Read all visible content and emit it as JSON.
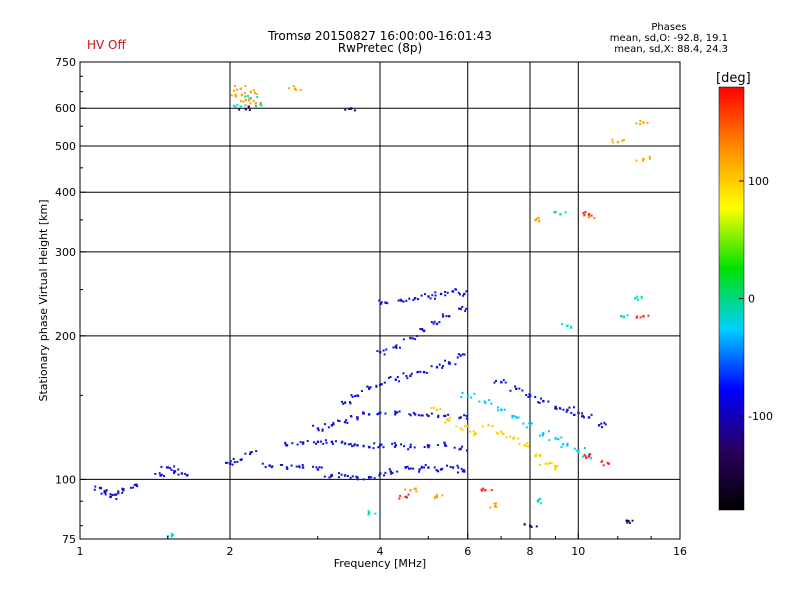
{
  "header": {
    "hv_status": "HV Off",
    "title_line1": "Tromsø 20150827 16:00:00-16:01:43",
    "title_line2": "RwPretec (8p)",
    "phases_title": "Phases",
    "phases_o": "mean, sd,O: -92.8, 19.1",
    "phases_x": "mean, sd,X: 88.4, 24.3"
  },
  "chart_data": {
    "type": "scatter",
    "title": "Tromsø 20150827 16:00:00-16:01:43",
    "subtitle": "RwPretec (8p)",
    "xlabel": "Frequency [MHz]",
    "ylabel": "Stationary phase Virtual Height [km]",
    "x_scale": "log",
    "y_scale": "log",
    "xlim": [
      1,
      16
    ],
    "ylim": [
      75,
      750
    ],
    "x_ticks": [
      1,
      2,
      4,
      6,
      8,
      10,
      16
    ],
    "x_tick_labels": [
      "1",
      "2",
      "4",
      "6",
      "8",
      "10",
      "16"
    ],
    "y_ticks": [
      75,
      100,
      200,
      300,
      400,
      500,
      600,
      750
    ],
    "y_tick_labels": [
      "75",
      "100",
      "200",
      "300",
      "400",
      "500",
      "600",
      "750"
    ],
    "x_gridlines": [
      2,
      4,
      6,
      8,
      10
    ],
    "y_gridlines": [
      100,
      200,
      300,
      400,
      500,
      600
    ],
    "grid": true,
    "colorbar": {
      "label": "[deg]",
      "range": [
        -180,
        180
      ],
      "ticks": [
        100,
        0,
        -100
      ],
      "tick_labels": [
        "100",
        "0",
        "-100"
      ],
      "colors": [
        "#000000",
        "#2a0060",
        "#0000ff",
        "#00d0ff",
        "#00e000",
        "#ffff00",
        "#ff8c00",
        "#ff0000"
      ]
    },
    "series": [
      {
        "color": "#1010d8",
        "points": [
          [
            1.1,
            96
          ],
          [
            1.12,
            94
          ],
          [
            1.15,
            92
          ],
          [
            1.18,
            93
          ],
          [
            1.22,
            95
          ],
          [
            1.3,
            97
          ],
          [
            1.45,
            102
          ],
          [
            1.5,
            106
          ],
          [
            1.55,
            104
          ],
          [
            1.6,
            103
          ],
          [
            2.0,
            108
          ],
          [
            2.1,
            110
          ],
          [
            2.2,
            114
          ],
          [
            2.4,
            107
          ],
          [
            2.6,
            106
          ],
          [
            2.8,
            106
          ],
          [
            3.0,
            105
          ],
          [
            3.2,
            102
          ],
          [
            3.4,
            102
          ],
          [
            3.6,
            101
          ],
          [
            3.8,
            101
          ],
          [
            4.0,
            103
          ],
          [
            4.2,
            104
          ],
          [
            4.5,
            106
          ],
          [
            4.8,
            105
          ],
          [
            5.0,
            106
          ],
          [
            5.3,
            105
          ],
          [
            5.6,
            106
          ],
          [
            5.9,
            104
          ]
        ]
      },
      {
        "color": "#1010d8",
        "points": [
          [
            2.6,
            118
          ],
          [
            2.8,
            119
          ],
          [
            3.0,
            120
          ],
          [
            3.2,
            120
          ],
          [
            3.4,
            119
          ],
          [
            3.6,
            118
          ],
          [
            3.8,
            117
          ],
          [
            4.0,
            118
          ],
          [
            4.3,
            118
          ],
          [
            4.6,
            117
          ],
          [
            5.0,
            117
          ],
          [
            5.4,
            118
          ],
          [
            5.8,
            116
          ]
        ]
      },
      {
        "color": "#1010d8",
        "points": [
          [
            3.0,
            128
          ],
          [
            3.2,
            130
          ],
          [
            3.4,
            132
          ],
          [
            3.6,
            135
          ],
          [
            3.8,
            137
          ],
          [
            4.0,
            138
          ],
          [
            4.3,
            138
          ],
          [
            4.7,
            137
          ],
          [
            5.0,
            136
          ],
          [
            5.4,
            136
          ],
          [
            5.8,
            135
          ]
        ]
      },
      {
        "color": "#1010d8",
        "points": [
          [
            3.4,
            145
          ],
          [
            3.6,
            150
          ],
          [
            3.8,
            155
          ],
          [
            4.0,
            158
          ],
          [
            4.3,
            162
          ],
          [
            4.6,
            165
          ],
          [
            4.9,
            168
          ],
          [
            5.2,
            172
          ],
          [
            5.5,
            176
          ],
          [
            5.8,
            182
          ]
        ]
      },
      {
        "color": "#1010d8",
        "points": [
          [
            4.0,
            185
          ],
          [
            4.3,
            190
          ],
          [
            4.6,
            198
          ],
          [
            4.9,
            205
          ],
          [
            5.2,
            212
          ],
          [
            5.5,
            220
          ],
          [
            5.8,
            228
          ]
        ]
      },
      {
        "color": "#1010d8",
        "points": [
          [
            4.1,
            235
          ],
          [
            4.4,
            238
          ],
          [
            4.7,
            240
          ],
          [
            5.0,
            242
          ],
          [
            5.3,
            245
          ],
          [
            5.6,
            248
          ],
          [
            5.9,
            245
          ]
        ]
      },
      {
        "color": "#ffd000",
        "points": [
          [
            5.2,
            140
          ],
          [
            5.5,
            133
          ],
          [
            5.8,
            128
          ],
          [
            6.2,
            125
          ],
          [
            6.6,
            130
          ],
          [
            7.0,
            126
          ],
          [
            7.4,
            122
          ],
          [
            7.8,
            118
          ],
          [
            8.2,
            112
          ],
          [
            8.6,
            108
          ],
          [
            9.0,
            106
          ]
        ]
      },
      {
        "color": "#00c8ff",
        "points": [
          [
            6.0,
            150
          ],
          [
            6.5,
            145
          ],
          [
            7.0,
            140
          ],
          [
            7.5,
            135
          ],
          [
            8.0,
            130
          ],
          [
            8.5,
            125
          ],
          [
            9.0,
            122
          ],
          [
            9.5,
            118
          ],
          [
            10.0,
            115
          ],
          [
            10.5,
            112
          ]
        ]
      },
      {
        "color": "#1010d8",
        "points": [
          [
            7.0,
            160
          ],
          [
            7.5,
            155
          ],
          [
            8.0,
            150
          ],
          [
            8.5,
            146
          ],
          [
            9.0,
            142
          ],
          [
            9.5,
            140
          ],
          [
            10.0,
            138
          ],
          [
            10.5,
            135
          ],
          [
            11.0,
            130
          ]
        ]
      },
      {
        "color": "#ffa000",
        "points": [
          [
            2.05,
            640
          ],
          [
            2.1,
            660
          ],
          [
            2.15,
            625
          ],
          [
            2.2,
            650
          ],
          [
            2.25,
            615
          ],
          [
            2.7,
            660
          ],
          [
            12.0,
            510
          ],
          [
            13.5,
            560
          ],
          [
            13.5,
            470
          ],
          [
            10.5,
            355
          ],
          [
            8.2,
            350
          ],
          [
            4.6,
            95
          ],
          [
            5.2,
            92
          ],
          [
            6.8,
            88
          ]
        ]
      },
      {
        "color": "#00e0c0",
        "points": [
          [
            2.1,
            605
          ],
          [
            2.2,
            630
          ],
          [
            2.3,
            612
          ],
          [
            13.0,
            240
          ],
          [
            12.2,
            220
          ],
          [
            9.2,
            360
          ],
          [
            9.5,
            210
          ],
          [
            8.3,
            90
          ],
          [
            3.8,
            85
          ],
          [
            1.5,
            76
          ]
        ]
      },
      {
        "color": "#2a0060",
        "points": [
          [
            3.5,
            600
          ],
          [
            2.15,
            598
          ],
          [
            8.0,
            80
          ],
          [
            12.5,
            82
          ]
        ]
      },
      {
        "color": "#ff2020",
        "points": [
          [
            10.5,
            360
          ],
          [
            13.5,
            220
          ],
          [
            10.5,
            112
          ],
          [
            11.5,
            108
          ],
          [
            6.5,
            95
          ],
          [
            4.5,
            92
          ]
        ]
      }
    ]
  }
}
